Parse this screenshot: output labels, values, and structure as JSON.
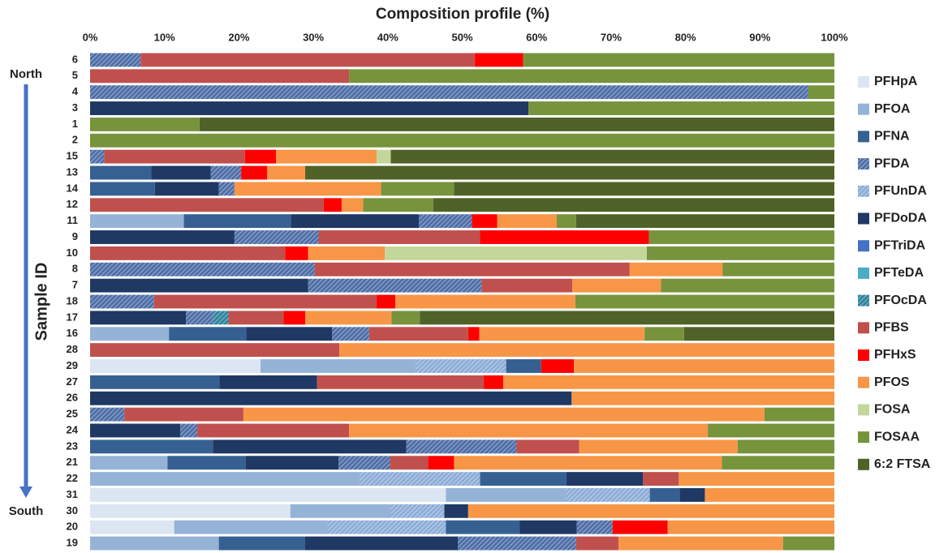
{
  "chart_data": {
    "type": "stacked-bar-horizontal",
    "title": "Composition profile (%)",
    "y_label": "Sample ID",
    "annotations": [
      "North",
      "South"
    ],
    "categories": [
      "6",
      "5",
      "4",
      "3",
      "1",
      "2",
      "15",
      "13",
      "14",
      "12",
      "11",
      "9",
      "10",
      "8",
      "7",
      "18",
      "17",
      "16",
      "28",
      "29",
      "27",
      "26",
      "25",
      "24",
      "23",
      "21",
      "22",
      "31",
      "30",
      "20",
      "19"
    ],
    "xlim": [
      0,
      100
    ],
    "xticks": [
      {
        "value": 0,
        "label": "0%"
      },
      {
        "value": 10,
        "label": "10%"
      },
      {
        "value": 20,
        "label": "20%"
      },
      {
        "value": 30,
        "label": "30%"
      },
      {
        "value": 40,
        "label": "40%"
      },
      {
        "value": 50,
        "label": "50%"
      },
      {
        "value": 60,
        "label": "60%"
      },
      {
        "value": 70,
        "label": "70%"
      },
      {
        "value": 80,
        "label": "80%"
      },
      {
        "value": 90,
        "label": "90%"
      },
      {
        "value": 100,
        "label": "100%"
      }
    ],
    "legend": "right",
    "series": [
      {
        "name": "PFHpA",
        "color": "#dce6f2",
        "hatch": false,
        "values": [
          0,
          0,
          0,
          0,
          0,
          0,
          0,
          0,
          0,
          0,
          0,
          0,
          0,
          0,
          0,
          0,
          0,
          0,
          0,
          22.9,
          0,
          0,
          0,
          0,
          0,
          0,
          0,
          47.8,
          26.9,
          11.3,
          0
        ]
      },
      {
        "name": "PFOA",
        "color": "#95b3d7",
        "hatch": false,
        "values": [
          0,
          0,
          0,
          0,
          0,
          0,
          0,
          0,
          0,
          0,
          12.6,
          0,
          0,
          0,
          0,
          0,
          0,
          10.6,
          0,
          20.9,
          0,
          0,
          0,
          0,
          0,
          10.4,
          36.3,
          16.1,
          13.5,
          20.6,
          17.3
        ]
      },
      {
        "name": "PFNA",
        "color": "#366092",
        "hatch": false,
        "values": [
          0,
          0,
          0,
          0,
          0,
          0,
          0,
          8.2,
          8.7,
          0,
          14.4,
          0,
          0,
          0,
          0,
          0,
          0,
          10.4,
          0,
          4.7,
          17.4,
          0,
          0,
          0,
          16.5,
          10.5,
          11.6,
          4.0,
          0,
          9.9,
          11.6
        ]
      },
      {
        "name": "PFDA",
        "color": "#4f6fa8",
        "hatch": true,
        "values": [
          6.8,
          0,
          96.5,
          0,
          0,
          0,
          1.9,
          4.1,
          2.1,
          0,
          7.1,
          11.3,
          0,
          30.2,
          23.3,
          8.6,
          3.6,
          5.0,
          0,
          0,
          0,
          0,
          4.6,
          2.3,
          14.8,
          6.9,
          0,
          0,
          0,
          4.8,
          15.9
        ]
      },
      {
        "name": "PFUnDA",
        "color": "#8eaed8",
        "hatch": true,
        "values": [
          0,
          0,
          0,
          0,
          0,
          0,
          0,
          0,
          0,
          0,
          0,
          0,
          0,
          0,
          0,
          0,
          0,
          0,
          0,
          12.1,
          0,
          0,
          0,
          0,
          0,
          0,
          16.1,
          11.3,
          7.2,
          15.9,
          0
        ]
      },
      {
        "name": "PFDoDA",
        "color": "#1f3864",
        "hatch": false,
        "values": [
          0,
          0,
          0,
          58.9,
          0,
          0,
          0,
          8.0,
          8.6,
          0,
          17.2,
          19.4,
          0,
          0,
          29.3,
          0,
          12.9,
          11.5,
          0,
          0,
          13.1,
          64.7,
          0,
          12.1,
          26.0,
          12.5,
          10.3,
          3.4,
          3.2,
          7.7,
          20.5
        ]
      },
      {
        "name": "PFTriDA",
        "color": "#4472c4",
        "hatch": false,
        "values": [
          0,
          0,
          0,
          0,
          0,
          0,
          0,
          0,
          0,
          0,
          0,
          0,
          0,
          0,
          0,
          0,
          0,
          0,
          0,
          0,
          0,
          0,
          0,
          0,
          0,
          0,
          0,
          0,
          0,
          0,
          0
        ]
      },
      {
        "name": "PFTeDA",
        "color": "#4bacc6",
        "hatch": false,
        "values": [
          0,
          0,
          0,
          0,
          0,
          0,
          0,
          0,
          0,
          0,
          0,
          0,
          0,
          0,
          0,
          0,
          0,
          0,
          0,
          0,
          0,
          0,
          0,
          0,
          0,
          0,
          0,
          0,
          0,
          0,
          0
        ]
      },
      {
        "name": "PFOcDA",
        "color": "#31859c",
        "hatch": true,
        "values": [
          0,
          0,
          0,
          0,
          0,
          0,
          0,
          0,
          0,
          0,
          0,
          0,
          0,
          0,
          0,
          0,
          2.1,
          0,
          0,
          0,
          0,
          0,
          0,
          0,
          0,
          0,
          0,
          0,
          0,
          0,
          0
        ]
      },
      {
        "name": "PFBS",
        "color": "#c0504d",
        "hatch": false,
        "values": [
          44.9,
          34.8,
          0,
          0,
          0,
          0,
          18.9,
          0,
          0,
          31.4,
          0,
          21.7,
          26.2,
          42.3,
          12.2,
          29.9,
          7.4,
          13.3,
          33.5,
          0,
          22.4,
          0,
          16.0,
          20.4,
          8.4,
          5.1,
          4.8,
          0,
          0,
          0,
          5.7
        ]
      },
      {
        "name": "PFHxS",
        "color": "#ff0000",
        "hatch": false,
        "values": [
          6.5,
          0,
          0,
          0,
          0,
          0,
          4.2,
          3.5,
          0,
          2.4,
          3.4,
          22.7,
          3.1,
          0,
          0,
          2.5,
          2.9,
          1.5,
          0,
          4.4,
          2.6,
          0,
          0,
          0,
          0,
          3.5,
          0,
          0,
          0,
          7.4,
          0
        ]
      },
      {
        "name": "PFOS",
        "color": "#f79646",
        "hatch": false,
        "values": [
          0,
          0,
          0,
          0,
          0,
          0,
          13.5,
          5.1,
          19.7,
          2.9,
          8.0,
          0,
          10.3,
          12.5,
          11.9,
          24.2,
          11.6,
          22.2,
          66.5,
          35.0,
          44.5,
          35.3,
          70.0,
          48.2,
          21.3,
          36.0,
          20.9,
          17.4,
          49.2,
          22.4,
          22.1
        ]
      },
      {
        "name": "FOSA",
        "color": "#c4d79b",
        "hatch": false,
        "values": [
          0,
          0,
          0,
          0,
          0,
          0,
          1.9,
          0,
          0,
          0,
          0,
          0,
          35.2,
          0,
          0,
          0,
          0,
          0,
          0,
          0,
          0,
          0,
          0,
          0,
          0,
          0,
          0,
          0,
          0,
          0,
          0
        ]
      },
      {
        "name": "FOSAA",
        "color": "#77933c",
        "hatch": false,
        "values": [
          41.8,
          65.2,
          3.5,
          41.1,
          14.7,
          100,
          0,
          0,
          9.8,
          9.4,
          2.6,
          24.9,
          25.2,
          15.0,
          23.3,
          34.8,
          3.8,
          5.3,
          0,
          0,
          0,
          0,
          9.4,
          17.0,
          13.0,
          15.1,
          0,
          0,
          0,
          0,
          6.9
        ]
      },
      {
        "name": "6:2 FTSA",
        "color": "#4f6228",
        "hatch": false,
        "values": [
          0,
          0,
          0,
          0,
          85.3,
          0,
          59.6,
          71.1,
          51.1,
          53.9,
          34.7,
          0,
          0,
          0,
          0,
          0,
          55.7,
          20.2,
          0,
          0,
          0,
          0,
          0,
          0,
          0,
          0,
          0,
          0,
          0,
          0,
          0
        ]
      }
    ]
  }
}
